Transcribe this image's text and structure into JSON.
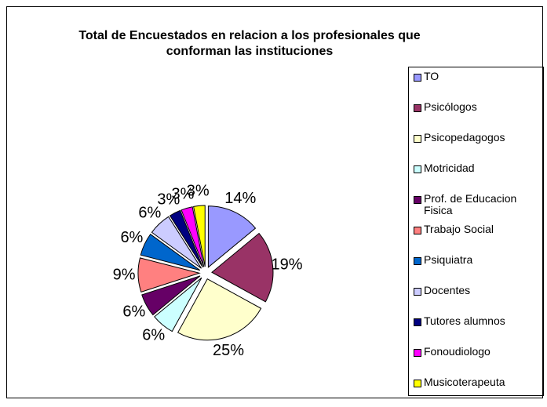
{
  "chart_data": {
    "type": "pie",
    "title": "Total de Encuestados en relacion a los profesionales que conforman las instituciones",
    "categories": [
      "TO",
      "Psicólogos",
      "Psicopedagogos",
      "Motricidad",
      "Prof. de Educacion Fisica",
      "Trabajo Social",
      "Psiquiatra",
      "Docentes",
      "Tutores alumnos",
      "Fonoudiologo",
      "Musicoterapeuta"
    ],
    "values": [
      14,
      19,
      25,
      6,
      6,
      9,
      6,
      6,
      3,
      3,
      3
    ],
    "value_labels": [
      "14%",
      "19%",
      "25%",
      "6%",
      "6%",
      "9%",
      "6%",
      "6%",
      "3%",
      "3%",
      "3%"
    ],
    "colors": [
      "#9999ff",
      "#993366",
      "#ffffcc",
      "#ccffff",
      "#660066",
      "#ff8080",
      "#0066cc",
      "#ccccff",
      "#000080",
      "#ff00ff",
      "#ffff00"
    ],
    "legend": "right"
  }
}
